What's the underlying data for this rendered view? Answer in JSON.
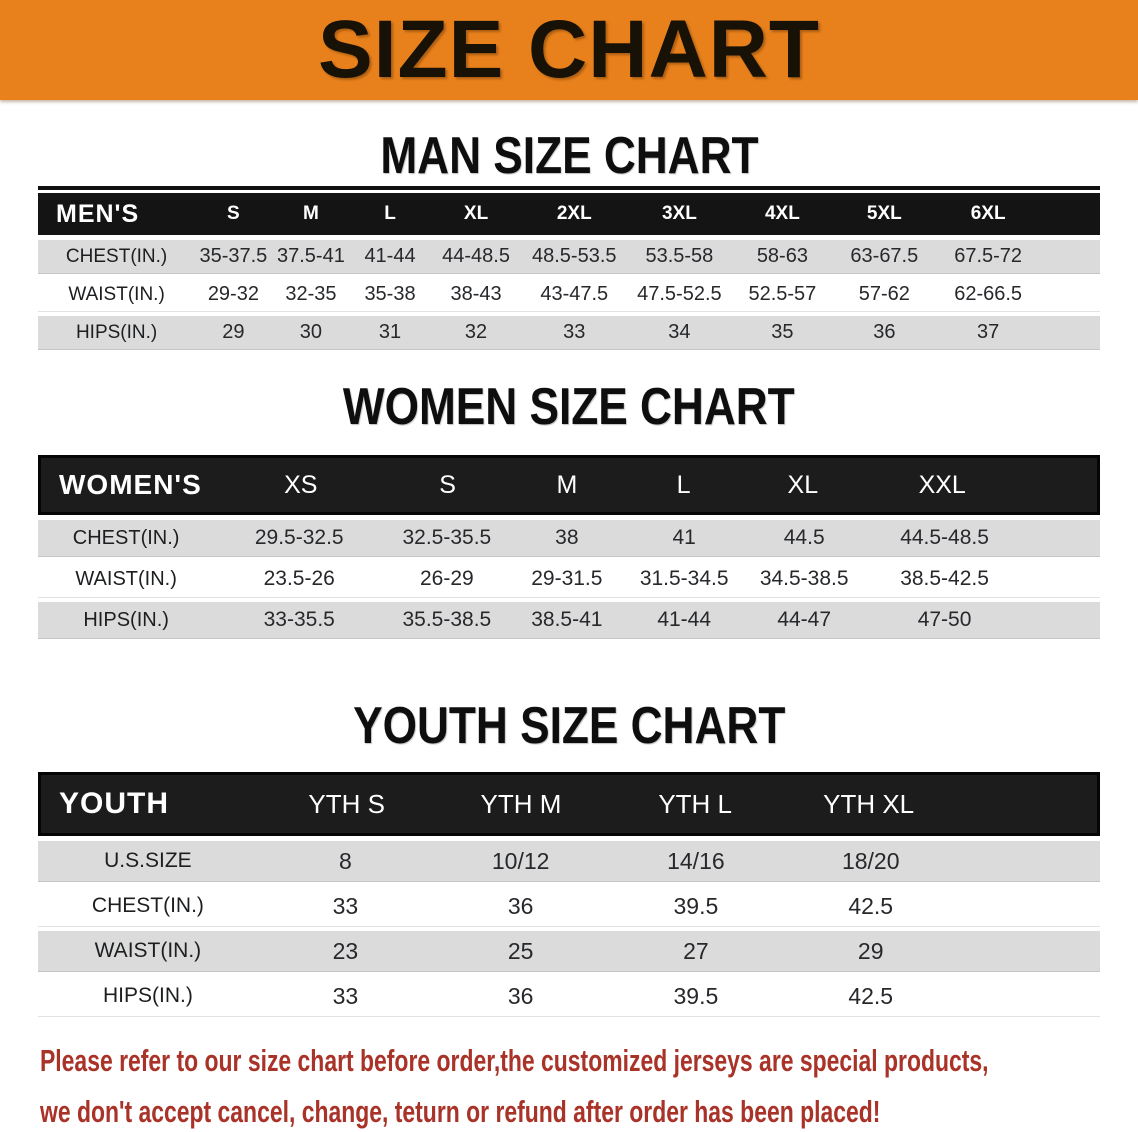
{
  "banner": {
    "title": "SIZE CHART",
    "bg_color": "#E8811C"
  },
  "men": {
    "heading": "MAN SIZE CHART",
    "table": {
      "label": "MEN'S",
      "columns": [
        "S",
        "M",
        "L",
        "XL",
        "2XL",
        "3XL",
        "4XL",
        "5XL",
        "6XL"
      ],
      "rows": [
        {
          "label": "CHEST(IN.)",
          "values": [
            "35-37.5",
            "37.5-41",
            "41-44",
            "44-48.5",
            "48.5-53.5",
            "53.5-58",
            "58-63",
            "63-67.5",
            "67.5-72"
          ]
        },
        {
          "label": "WAIST(IN.)",
          "values": [
            "29-32",
            "32-35",
            "35-38",
            "38-43",
            "43-47.5",
            "47.5-52.5",
            "52.5-57",
            "57-62",
            "62-66.5"
          ]
        },
        {
          "label": "HIPS(IN.)",
          "values": [
            "29",
            "30",
            "31",
            "32",
            "33",
            "34",
            "35",
            "36",
            "37"
          ]
        }
      ]
    }
  },
  "women": {
    "heading": "WOMEN SIZE CHART",
    "table": {
      "label": "WOMEN'S",
      "columns": [
        "XS",
        "S",
        "M",
        "L",
        "XL",
        "XXL"
      ],
      "rows": [
        {
          "label": "CHEST(IN.)",
          "values": [
            "29.5-32.5",
            "32.5-35.5",
            "38",
            "41",
            "44.5",
            "44.5-48.5"
          ]
        },
        {
          "label": "WAIST(IN.)",
          "values": [
            "23.5-26",
            "26-29",
            "29-31.5",
            "31.5-34.5",
            "34.5-38.5",
            "38.5-42.5"
          ]
        },
        {
          "label": "HIPS(IN.)",
          "values": [
            "33-35.5",
            "35.5-38.5",
            "38.5-41",
            "41-44",
            "44-47",
            "47-50"
          ]
        }
      ]
    }
  },
  "youth": {
    "heading": "YOUTH SIZE CHART",
    "table": {
      "label": "YOUTH",
      "columns": [
        "YTH S",
        "YTH M",
        "YTH L",
        "YTH XL"
      ],
      "rows": [
        {
          "label": "U.S.SIZE",
          "values": [
            "8",
            "10/12",
            "14/16",
            "18/20"
          ]
        },
        {
          "label": "CHEST(IN.)",
          "values": [
            "33",
            "36",
            "39.5",
            "42.5"
          ]
        },
        {
          "label": "WAIST(IN.)",
          "values": [
            "23",
            "25",
            "27",
            "29"
          ]
        },
        {
          "label": "HIPS(IN.)",
          "values": [
            "33",
            "36",
            "39.5",
            "42.5"
          ]
        }
      ]
    }
  },
  "footer": {
    "line1": "Please refer to our size chart before order,the customized jerseys are special products,",
    "line2": "we don't accept cancel, change, teturn or refund after order has been placed!",
    "text_color": "#A93328"
  }
}
